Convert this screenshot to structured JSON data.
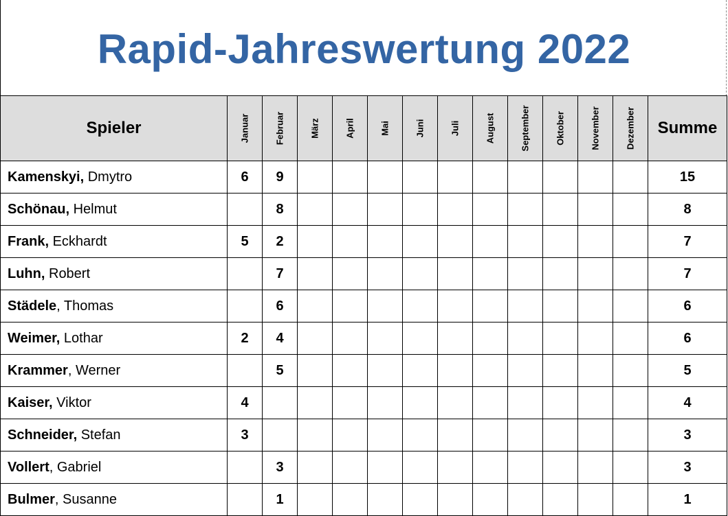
{
  "title": "Rapid-Jahreswertung 2022",
  "header": {
    "player": "Spieler",
    "sum": "Summe",
    "months": [
      "Januar",
      "Februar",
      "März",
      "April",
      "Mai",
      "Juni",
      "Juli",
      "August",
      "September",
      "Oktober",
      "November",
      "Dezember"
    ]
  },
  "rows": [
    {
      "last": "Kamenskyi,",
      "first": " Dmytro",
      "m": [
        "6",
        "9",
        "",
        "",
        "",
        "",
        "",
        "",
        "",
        "",
        "",
        ""
      ],
      "sum": "15"
    },
    {
      "last": "Schönau,",
      "first": " Helmut",
      "m": [
        "",
        "8",
        "",
        "",
        "",
        "",
        "",
        "",
        "",
        "",
        "",
        ""
      ],
      "sum": "8"
    },
    {
      "last": "Frank,",
      "first": " Eckhardt",
      "m": [
        "5",
        "2",
        "",
        "",
        "",
        "",
        "",
        "",
        "",
        "",
        "",
        ""
      ],
      "sum": "7"
    },
    {
      "last": "Luhn,",
      "first": " Robert",
      "m": [
        "",
        "7",
        "",
        "",
        "",
        "",
        "",
        "",
        "",
        "",
        "",
        ""
      ],
      "sum": "7"
    },
    {
      "last": "Städele",
      "first": ", Thomas",
      "m": [
        "",
        "6",
        "",
        "",
        "",
        "",
        "",
        "",
        "",
        "",
        "",
        ""
      ],
      "sum": "6"
    },
    {
      "last": "Weimer,",
      "first": " Lothar",
      "m": [
        "2",
        "4",
        "",
        "",
        "",
        "",
        "",
        "",
        "",
        "",
        "",
        ""
      ],
      "sum": "6"
    },
    {
      "last": "Krammer",
      "first": ", Werner",
      "m": [
        "",
        "5",
        "",
        "",
        "",
        "",
        "",
        "",
        "",
        "",
        "",
        ""
      ],
      "sum": "5"
    },
    {
      "last": "Kaiser,",
      "first": " Viktor",
      "m": [
        "4",
        "",
        "",
        "",
        "",
        "",
        "",
        "",
        "",
        "",
        "",
        ""
      ],
      "sum": "4"
    },
    {
      "last": "Schneider,",
      "first": " Stefan",
      "m": [
        "3",
        "",
        "",
        "",
        "",
        "",
        "",
        "",
        "",
        "",
        "",
        ""
      ],
      "sum": "3"
    },
    {
      "last": "Vollert",
      "first": ", Gabriel",
      "m": [
        "",
        "3",
        "",
        "",
        "",
        "",
        "",
        "",
        "",
        "",
        "",
        ""
      ],
      "sum": "3"
    },
    {
      "last": "Bulmer",
      "first": ", Susanne",
      "m": [
        "",
        "1",
        "",
        "",
        "",
        "",
        "",
        "",
        "",
        "",
        "",
        ""
      ],
      "sum": "1"
    }
  ]
}
